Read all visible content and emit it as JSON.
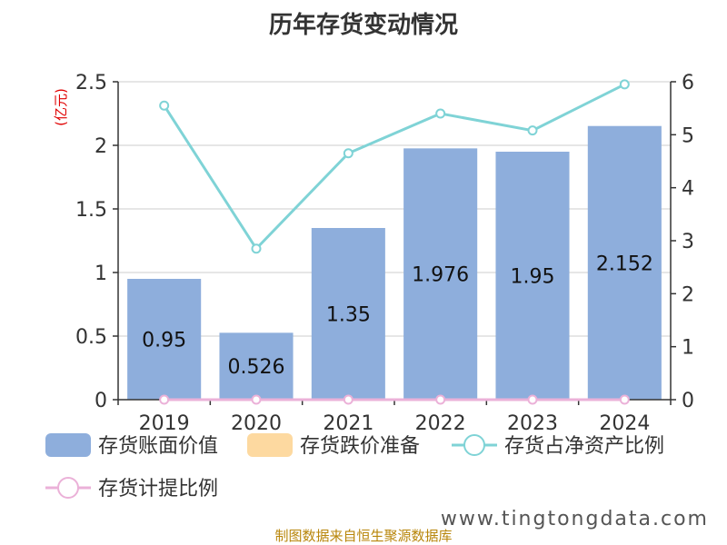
{
  "chart_data": {
    "type": "bar",
    "title": "历年存货变动情况",
    "unit_label": "(亿元)",
    "categories": [
      "2019",
      "2020",
      "2021",
      "2022",
      "2023",
      "2024"
    ],
    "y_left": {
      "min": 0,
      "max": 2.5,
      "ticks": [
        "0",
        "0.5",
        "1",
        "1.5",
        "2",
        "2.5"
      ]
    },
    "y_right": {
      "min": 0,
      "max": 6,
      "ticks": [
        "0",
        "1",
        "2",
        "3",
        "4",
        "5",
        "6"
      ]
    },
    "series": [
      {
        "name": "存货账面价值",
        "type": "bar",
        "axis": "left",
        "color": "#8eaedc",
        "values": [
          0.95,
          0.526,
          1.35,
          1.976,
          1.95,
          2.152
        ],
        "labels": [
          "0.95",
          "0.526",
          "1.35",
          "1.976",
          "1.95",
          "2.152"
        ]
      },
      {
        "name": "存货跌价准备",
        "type": "bar",
        "axis": "left",
        "color": "#fdd9a0",
        "values": [
          0,
          0,
          0,
          0,
          0,
          0
        ]
      },
      {
        "name": "存货占净资产比例",
        "type": "line",
        "axis": "right",
        "color": "#7fd3d6",
        "values": [
          5.55,
          2.85,
          4.65,
          5.4,
          5.08,
          5.95
        ]
      },
      {
        "name": "存货计提比例",
        "type": "line",
        "axis": "right",
        "color": "#ebb1d8",
        "values": [
          0,
          0,
          0,
          0,
          0,
          0
        ]
      }
    ],
    "grid": true,
    "legend_position": "bottom"
  },
  "footer": {
    "source": "制图数据来自恒生聚源数据库",
    "watermark": "www.tingtongdata.com"
  }
}
